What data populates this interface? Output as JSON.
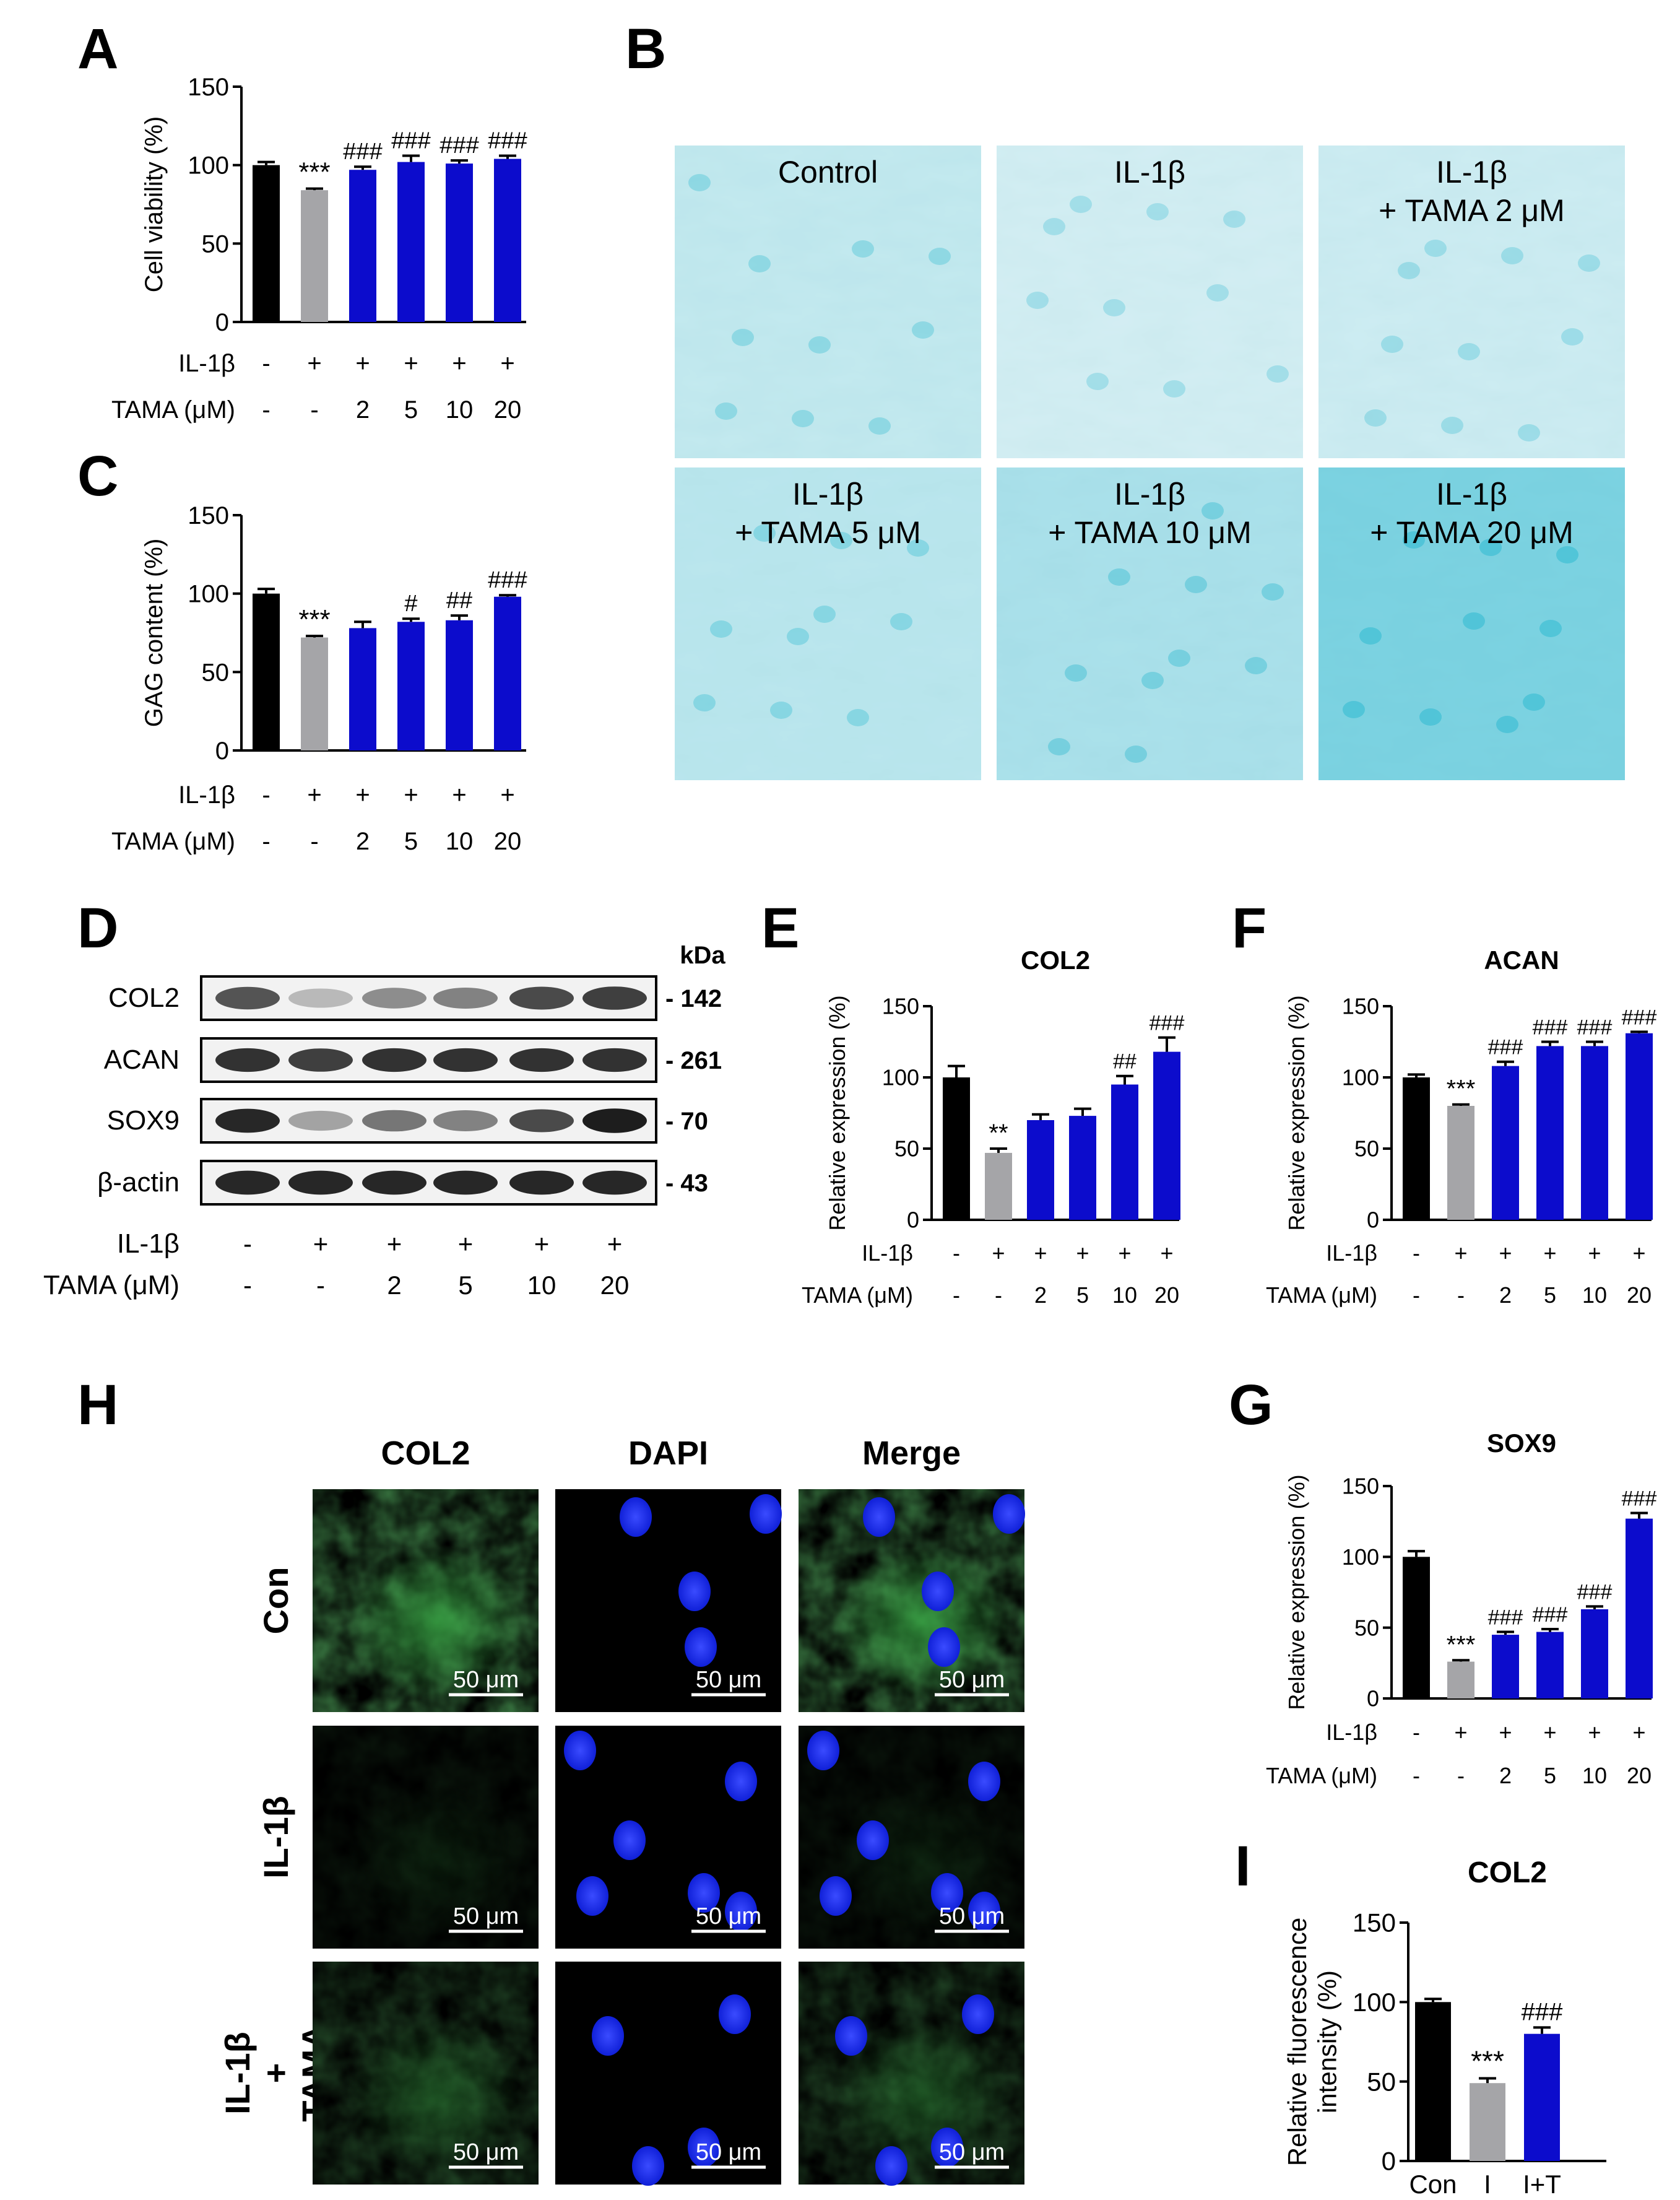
{
  "panel_letters": {
    "a": "A",
    "b": "B",
    "c": "C",
    "d": "D",
    "e": "E",
    "f": "F",
    "g": "G",
    "h": "H",
    "i": "I"
  },
  "colors": {
    "control": "#000000",
    "il1b": "#a5a5a8",
    "tama": "#0c0ccc",
    "alcian_bg": "#d9eef2",
    "alcian_dark": "#2ab8cf",
    "col2_green": "#39a544",
    "dapi_blue": "#1d2bff"
  },
  "row_labels": {
    "il1b": "IL-1β",
    "tama": "TAMA (μM)"
  },
  "treatment_signs": {
    "il1b": [
      "-",
      "+",
      "+",
      "+",
      "+",
      "+"
    ],
    "tama": [
      "-",
      "-",
      "2",
      "5",
      "10",
      "20"
    ]
  },
  "chart_data": [
    {
      "id": "A",
      "type": "bar",
      "ylabel": "Cell viability (%)",
      "ylim": [
        0,
        150
      ],
      "yticks": [
        0,
        50,
        100,
        150
      ],
      "categories": [
        "1",
        "2",
        "3",
        "4",
        "5",
        "6"
      ],
      "values": [
        100,
        84,
        97,
        102,
        101,
        104
      ],
      "errors": [
        2,
        1,
        2,
        4,
        2,
        2
      ],
      "annotations": [
        "",
        "***",
        "###",
        "###",
        "###",
        "###"
      ]
    },
    {
      "id": "C",
      "type": "bar",
      "ylabel": "GAG content (%)",
      "ylim": [
        0,
        150
      ],
      "yticks": [
        0,
        50,
        100,
        150
      ],
      "categories": [
        "1",
        "2",
        "3",
        "4",
        "5",
        "6"
      ],
      "values": [
        100,
        72,
        78,
        82,
        83,
        98
      ],
      "errors": [
        3,
        1,
        4,
        2,
        3,
        1
      ],
      "annotations": [
        "",
        "***",
        "",
        "#",
        "##",
        "###"
      ]
    },
    {
      "id": "E",
      "type": "bar",
      "title": "COL2",
      "ylabel": "Relative expression (%)",
      "ylim": [
        0,
        150
      ],
      "yticks": [
        0,
        50,
        100,
        150
      ],
      "categories": [
        "1",
        "2",
        "3",
        "4",
        "5",
        "6"
      ],
      "values": [
        100,
        47,
        70,
        73,
        95,
        118
      ],
      "errors": [
        8,
        3,
        4,
        5,
        6,
        10
      ],
      "annotations": [
        "",
        "**",
        "",
        "",
        "##",
        "###"
      ]
    },
    {
      "id": "F",
      "type": "bar",
      "title": "ACAN",
      "ylabel": "Relative expression (%)",
      "ylim": [
        0,
        150
      ],
      "yticks": [
        0,
        50,
        100,
        150
      ],
      "categories": [
        "1",
        "2",
        "3",
        "4",
        "5",
        "6"
      ],
      "values": [
        100,
        80,
        108,
        122,
        122,
        131
      ],
      "errors": [
        2,
        1,
        3,
        3,
        3,
        1
      ],
      "annotations": [
        "",
        "***",
        "###",
        "###",
        "###",
        "###"
      ]
    },
    {
      "id": "G",
      "type": "bar",
      "title": "SOX9",
      "ylabel": "Relative expression (%)",
      "ylim": [
        0,
        150
      ],
      "yticks": [
        0,
        50,
        100,
        150
      ],
      "categories": [
        "1",
        "2",
        "3",
        "4",
        "5",
        "6"
      ],
      "values": [
        100,
        26,
        45,
        47,
        63,
        127
      ],
      "errors": [
        4,
        1,
        2,
        2,
        2,
        4
      ],
      "annotations": [
        "",
        "***",
        "###",
        "###",
        "###",
        "###"
      ]
    },
    {
      "id": "I",
      "type": "bar",
      "title": "COL2",
      "ylabel": "Relative fluorescence intensity (%)",
      "ylim": [
        0,
        150
      ],
      "yticks": [
        0,
        50,
        100,
        150
      ],
      "categories": [
        "Con",
        "I",
        "I+T"
      ],
      "values": [
        100,
        49,
        80
      ],
      "errors": [
        2,
        3,
        4
      ],
      "annotations": [
        "",
        "***",
        "###"
      ]
    }
  ],
  "panel_b": {
    "labels": [
      [
        "Control"
      ],
      [
        "IL-1β"
      ],
      [
        "IL-1β",
        "+ TAMA 2 μM"
      ],
      [
        "IL-1β",
        "+ TAMA 5 μM"
      ],
      [
        "IL-1β",
        "+ TAMA 10 μM"
      ],
      [
        "IL-1β",
        "+ TAMA 20 μM"
      ]
    ],
    "stain_levels": [
      0.25,
      0.1,
      0.15,
      0.3,
      0.45,
      0.85
    ]
  },
  "western": {
    "kda_label": "kDa",
    "proteins": [
      {
        "name": "COL2",
        "kda": "- 142"
      },
      {
        "name": "ACAN",
        "kda": "- 261"
      },
      {
        "name": "SOX9",
        "kda": "- 70"
      },
      {
        "name": "β-actin",
        "kda": "- 43"
      }
    ]
  },
  "panel_h": {
    "columns": [
      "COL2",
      "DAPI",
      "Merge"
    ],
    "rows": [
      [
        "Con"
      ],
      [
        "IL-1β"
      ],
      [
        "IL-1β",
        "+",
        "TAMA"
      ]
    ],
    "scale_bar": "50 μm"
  }
}
